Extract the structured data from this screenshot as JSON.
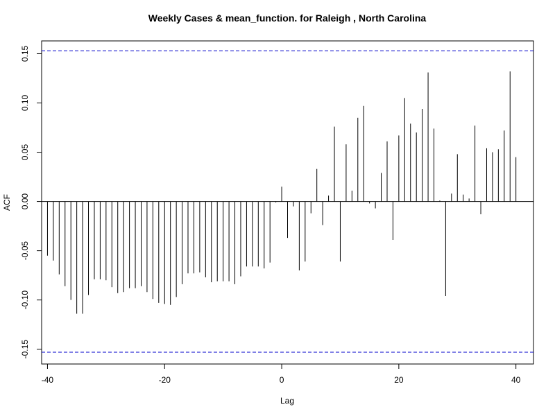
{
  "chart_data": {
    "type": "bar",
    "title": "Weekly Cases & mean_function. for Raleigh , North Carolina",
    "xlabel": "Lag",
    "ylabel": "ACF",
    "xlim": [
      -41,
      43
    ],
    "ylim": [
      -0.165,
      0.163
    ],
    "x_ticks": [
      -40,
      -20,
      0,
      20,
      40
    ],
    "y_ticks": [
      -0.15,
      -0.1,
      -0.05,
      0.0,
      0.05,
      0.1,
      0.15
    ],
    "y_tick_labels": [
      "-0.15",
      "-0.10",
      "-0.05",
      "0.00",
      "0.05",
      "0.10",
      "0.15"
    ],
    "confidence_bound": 0.153,
    "zero_line": true,
    "grid": false,
    "colors": {
      "bars": "#000000",
      "confidence": "#0000cc",
      "zero": "#000000"
    },
    "lags": [
      -40,
      -39,
      -38,
      -37,
      -36,
      -35,
      -34,
      -33,
      -32,
      -31,
      -30,
      -29,
      -28,
      -27,
      -26,
      -25,
      -24,
      -23,
      -22,
      -21,
      -20,
      -19,
      -18,
      -17,
      -16,
      -15,
      -14,
      -13,
      -12,
      -11,
      -10,
      -9,
      -8,
      -7,
      -6,
      -5,
      -4,
      -3,
      -2,
      -1,
      0,
      1,
      2,
      3,
      4,
      5,
      6,
      7,
      8,
      9,
      10,
      11,
      12,
      13,
      14,
      15,
      16,
      17,
      18,
      19,
      20,
      21,
      22,
      23,
      24,
      25,
      26,
      27,
      28,
      29,
      30,
      31,
      32,
      33,
      34,
      35,
      36,
      37,
      38,
      39,
      40
    ],
    "values": [
      -0.055,
      -0.06,
      -0.074,
      -0.086,
      -0.1,
      -0.114,
      -0.114,
      -0.095,
      -0.079,
      -0.079,
      -0.08,
      -0.087,
      -0.093,
      -0.092,
      -0.088,
      -0.088,
      -0.086,
      -0.092,
      -0.099,
      -0.103,
      -0.104,
      -0.105,
      -0.097,
      -0.084,
      -0.073,
      -0.073,
      -0.072,
      -0.077,
      -0.082,
      -0.081,
      -0.081,
      -0.081,
      -0.084,
      -0.076,
      -0.066,
      -0.066,
      -0.066,
      -0.068,
      -0.062,
      -0.001,
      0.015,
      -0.037,
      -0.005,
      -0.07,
      -0.061,
      -0.012,
      0.033,
      -0.024,
      0.006,
      0.076,
      -0.061,
      0.058,
      0.011,
      0.085,
      0.097,
      -0.002,
      -0.007,
      0.029,
      0.061,
      -0.039,
      0.067,
      0.105,
      0.079,
      0.07,
      0.094,
      0.131,
      0.074,
      0.001,
      -0.096,
      0.008,
      0.048,
      0.007,
      0.003,
      0.077,
      -0.013,
      0.054,
      0.05,
      0.053,
      0.072,
      0.132,
      0.045
    ]
  }
}
